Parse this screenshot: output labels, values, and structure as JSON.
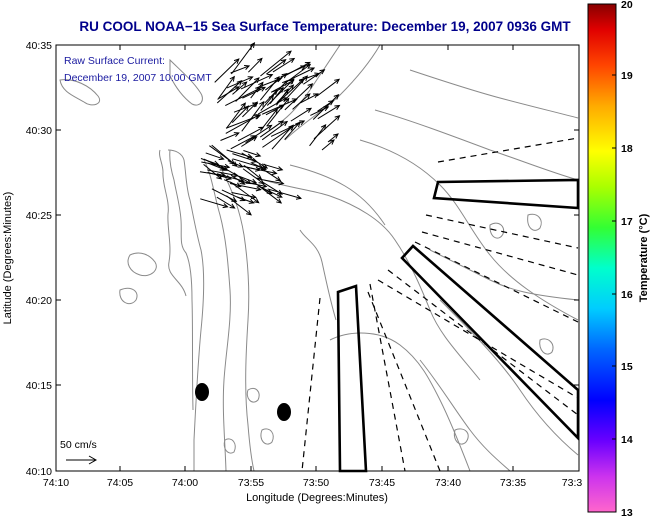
{
  "title": "RU COOL  NOAA−15  Sea Surface Temperature:  December 19, 2007 0936 GMT",
  "current_note": {
    "line1": "Raw Surface Current:",
    "line2": "December 19, 2007 10:00 GMT"
  },
  "axes": {
    "xlabel": "Longitude (Degrees:Minutes)",
    "ylabel": "Latitude (Degrees:Minutes)",
    "x_ticks": [
      "74:10",
      "74:05",
      "74:00",
      "73:55",
      "73:50",
      "73:45",
      "73:40",
      "73:35",
      "73:3"
    ],
    "y_ticks": [
      "40:35",
      "40:30",
      "40:25",
      "40:20",
      "40:15",
      "40:10"
    ]
  },
  "scale_label": "50 cm/s",
  "colorbar": {
    "label": "Temperature (°C)",
    "min": 13,
    "max": 20,
    "ticks": [
      "20",
      "19",
      "18",
      "17",
      "16",
      "15",
      "14",
      "13"
    ]
  },
  "colors": {
    "title": "#00008b",
    "note": "#1a1aa0",
    "land": "#fefefe",
    "contour": "#8a8a8a"
  }
}
